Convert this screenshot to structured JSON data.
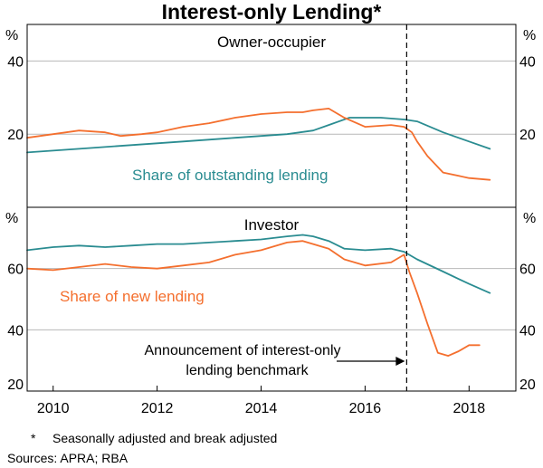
{
  "chart_data": {
    "type": "line",
    "title": "Interest-only Lending*",
    "unit_label": "%",
    "x_ticks": [
      "2010",
      "2012",
      "2014",
      "2016",
      "2018"
    ],
    "xlim": [
      2009.5,
      2018.9
    ],
    "colors": {
      "outstanding": "#2A8C91",
      "new": "#F46F2E",
      "grid": "#b8b8b8",
      "axis": "#000000"
    },
    "panels": [
      {
        "title": "Owner-occupier",
        "ylim": [
          0,
          50
        ],
        "yticks": [
          20,
          40
        ],
        "series": [
          {
            "name": "Share of outstanding lending",
            "key": "outstanding",
            "x": [
              2009.5,
              2010.5,
              2011.5,
              2012.5,
              2013.5,
              2014.5,
              2015.0,
              2015.3,
              2015.7,
              2016.0,
              2016.3,
              2016.75,
              2017.0,
              2017.5,
              2018.0,
              2018.4
            ],
            "y": [
              15.0,
              16.0,
              17.0,
              18.0,
              19.0,
              20.0,
              21.0,
              22.5,
              24.5,
              24.5,
              24.5,
              24.0,
              23.5,
              20.5,
              18.0,
              16.0
            ]
          },
          {
            "name": "Share of new lending",
            "key": "new",
            "x": [
              2009.5,
              2010.0,
              2010.5,
              2011.0,
              2011.3,
              2011.7,
              2012.0,
              2012.5,
              2013.0,
              2013.5,
              2014.0,
              2014.5,
              2014.8,
              2015.0,
              2015.3,
              2015.6,
              2016.0,
              2016.5,
              2016.75,
              2016.9,
              2017.0,
              2017.2,
              2017.5,
              2018.0,
              2018.4
            ],
            "y": [
              19.0,
              20.0,
              21.0,
              20.5,
              19.5,
              20.0,
              20.5,
              22.0,
              23.0,
              24.5,
              25.5,
              26.0,
              26.0,
              26.5,
              27.0,
              24.5,
              22.0,
              22.5,
              22.0,
              20.5,
              18.0,
              14.0,
              9.5,
              8.0,
              7.5
            ]
          }
        ],
        "series_label": {
          "text": "Share of outstanding lending",
          "key": "outstanding"
        }
      },
      {
        "title": "Investor",
        "ylim": [
          20,
          80
        ],
        "yticks": [
          20,
          40,
          60
        ],
        "series": [
          {
            "name": "Share of outstanding lending",
            "key": "outstanding",
            "x": [
              2009.5,
              2010.0,
              2010.5,
              2011.0,
              2011.5,
              2012.0,
              2012.5,
              2013.0,
              2013.5,
              2014.0,
              2014.5,
              2014.8,
              2015.0,
              2015.3,
              2015.6,
              2016.0,
              2016.5,
              2016.75,
              2017.0,
              2017.5,
              2018.0,
              2018.4
            ],
            "y": [
              66.0,
              67.0,
              67.5,
              67.0,
              67.5,
              68.0,
              68.0,
              68.5,
              69.0,
              69.5,
              70.5,
              71.0,
              70.5,
              69.0,
              66.5,
              66.0,
              66.5,
              65.5,
              63.0,
              59.0,
              55.0,
              52.0
            ]
          },
          {
            "name": "Share of new lending",
            "key": "new",
            "x": [
              2009.5,
              2010.0,
              2010.5,
              2011.0,
              2011.5,
              2012.0,
              2012.5,
              2013.0,
              2013.5,
              2014.0,
              2014.5,
              2014.8,
              2015.0,
              2015.3,
              2015.6,
              2016.0,
              2016.5,
              2016.75,
              2016.85,
              2017.0,
              2017.2,
              2017.4,
              2017.6,
              2017.8,
              2018.0,
              2018.2
            ],
            "y": [
              60.0,
              59.5,
              60.5,
              61.5,
              60.5,
              60.0,
              61.0,
              62.0,
              64.5,
              66.0,
              68.5,
              69.0,
              68.0,
              66.5,
              63.0,
              61.0,
              62.0,
              64.5,
              59.0,
              52.0,
              42.0,
              32.5,
              31.5,
              33.0,
              35.0,
              35.0
            ]
          }
        ],
        "series_label": {
          "text": "Share of new lending",
          "key": "new"
        }
      }
    ],
    "event": {
      "x": 2016.8,
      "text_line1": "Announcement of interest-only",
      "text_line2": "lending benchmark"
    }
  },
  "footnotes": {
    "marker": "*",
    "note": "Seasonally adjusted and break adjusted",
    "sources": "Sources: APRA; RBA"
  }
}
